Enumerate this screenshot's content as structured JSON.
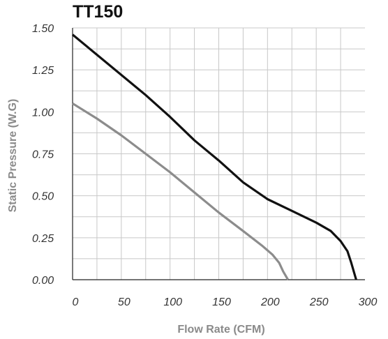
{
  "chart_data": {
    "type": "line",
    "title": "TT150",
    "xlabel": "Flow Rate (CFM)",
    "ylabel": "Static Pressure (W.G)",
    "xlim": [
      0,
      300
    ],
    "ylim": [
      0,
      1.5
    ],
    "x_major_ticks": [
      0,
      50,
      100,
      150,
      200,
      250,
      300
    ],
    "x_tick_labels": [
      "0",
      "50",
      "100",
      "150",
      "200",
      "250",
      "300"
    ],
    "y_major_ticks": [
      0,
      0.25,
      0.5,
      0.75,
      1.0,
      1.25,
      1.5
    ],
    "y_tick_labels": [
      "0.00",
      "0.25",
      "0.50",
      "0.75",
      "1.00",
      "1.25",
      "1.50"
    ],
    "x_grid_step": 25,
    "y_grid_step": 0.125,
    "grid": true,
    "legend": "none",
    "series": [
      {
        "color": "#111111",
        "x": [
          0,
          25,
          50,
          75,
          100,
          125,
          150,
          175,
          200,
          225,
          250,
          265,
          275,
          282,
          286,
          289,
          291
        ],
        "y": [
          1.46,
          1.34,
          1.22,
          1.1,
          0.97,
          0.83,
          0.71,
          0.58,
          0.48,
          0.41,
          0.34,
          0.29,
          0.23,
          0.17,
          0.1,
          0.04,
          0.0
        ]
      },
      {
        "color": "#8c8c8c",
        "x": [
          0,
          25,
          50,
          75,
          100,
          125,
          150,
          175,
          195,
          205,
          212,
          216,
          219,
          221
        ],
        "y": [
          1.05,
          0.96,
          0.86,
          0.75,
          0.64,
          0.52,
          0.4,
          0.29,
          0.2,
          0.15,
          0.1,
          0.05,
          0.02,
          0.0
        ]
      }
    ]
  }
}
